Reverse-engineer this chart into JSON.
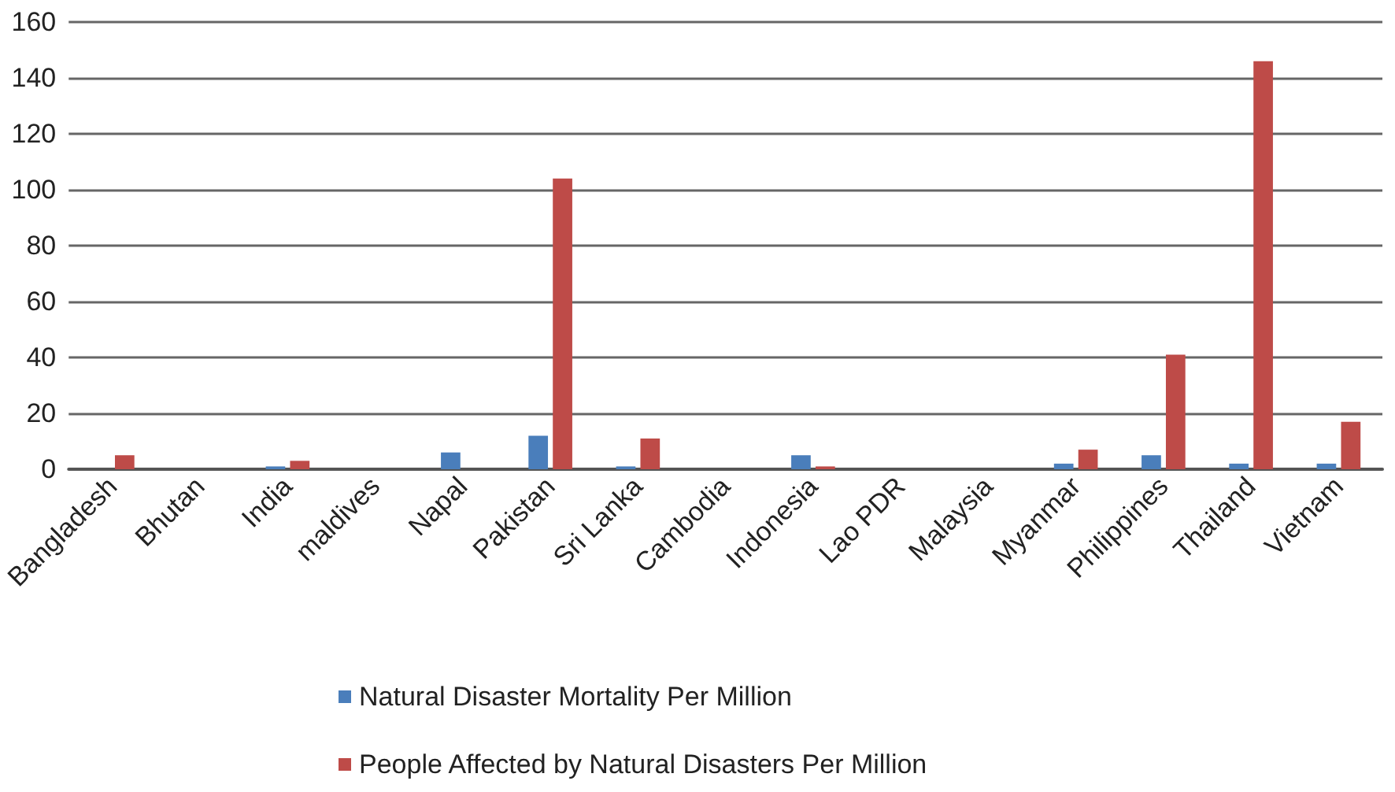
{
  "chart_data": {
    "type": "bar",
    "categories": [
      "Bangladesh",
      "Bhutan",
      "India",
      "maldives",
      "Napal",
      "Pakistan",
      "Sri Lanka",
      "Cambodia",
      "Indonesia",
      "Lao PDR",
      "Malaysia",
      "Myanmar",
      "Philippines",
      "Thailand",
      "Vietnam"
    ],
    "series": [
      {
        "name": "Natural Disaster Mortality Per Million",
        "color": "#4a7ebb",
        "values": [
          0,
          0,
          1,
          0,
          6,
          12,
          1,
          0,
          5,
          0,
          0,
          2,
          5,
          2,
          2
        ]
      },
      {
        "name": "People Affected by Natural Disasters Per Million",
        "color": "#be4b48",
        "values": [
          5,
          0,
          3,
          0,
          0,
          104,
          11,
          0,
          1,
          0,
          0,
          7,
          41,
          146,
          17
        ]
      }
    ],
    "ylim": [
      0,
      160
    ],
    "yticks": [
      0,
      20,
      40,
      60,
      80,
      100,
      120,
      140,
      160
    ],
    "grid": "y",
    "legend": "bottom"
  }
}
